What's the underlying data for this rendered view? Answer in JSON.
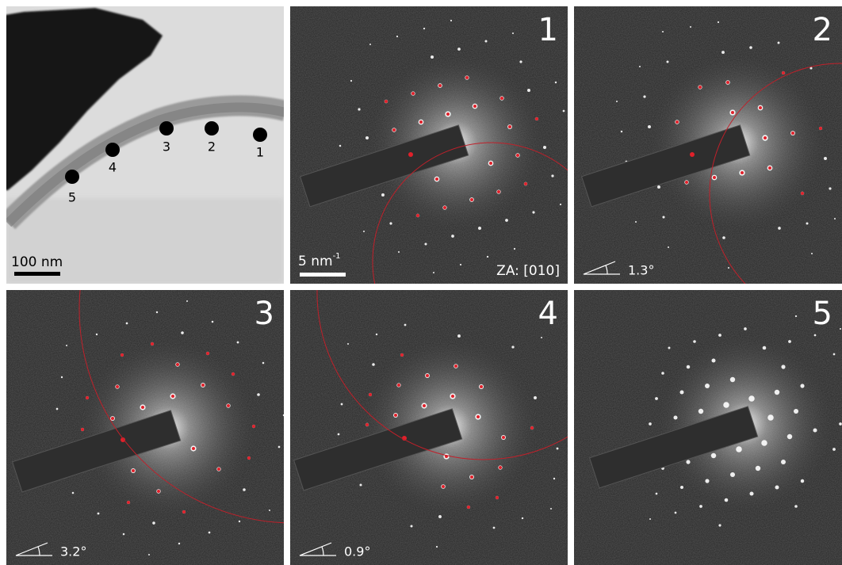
{
  "tem_image": {
    "scale_bar": "100 nm",
    "points": [
      "1",
      "2",
      "3",
      "4",
      "5"
    ]
  },
  "patterns": [
    {
      "label": "1",
      "scale_bar": {
        "text": "5 nm",
        "exponent": "-1"
      },
      "zone_axis": "ZA: [010]"
    },
    {
      "label": "2",
      "tilt": "1.3°"
    },
    {
      "label": "3",
      "tilt": "3.2°"
    },
    {
      "label": "4",
      "tilt": "0.9°"
    },
    {
      "label": "5"
    }
  ]
}
